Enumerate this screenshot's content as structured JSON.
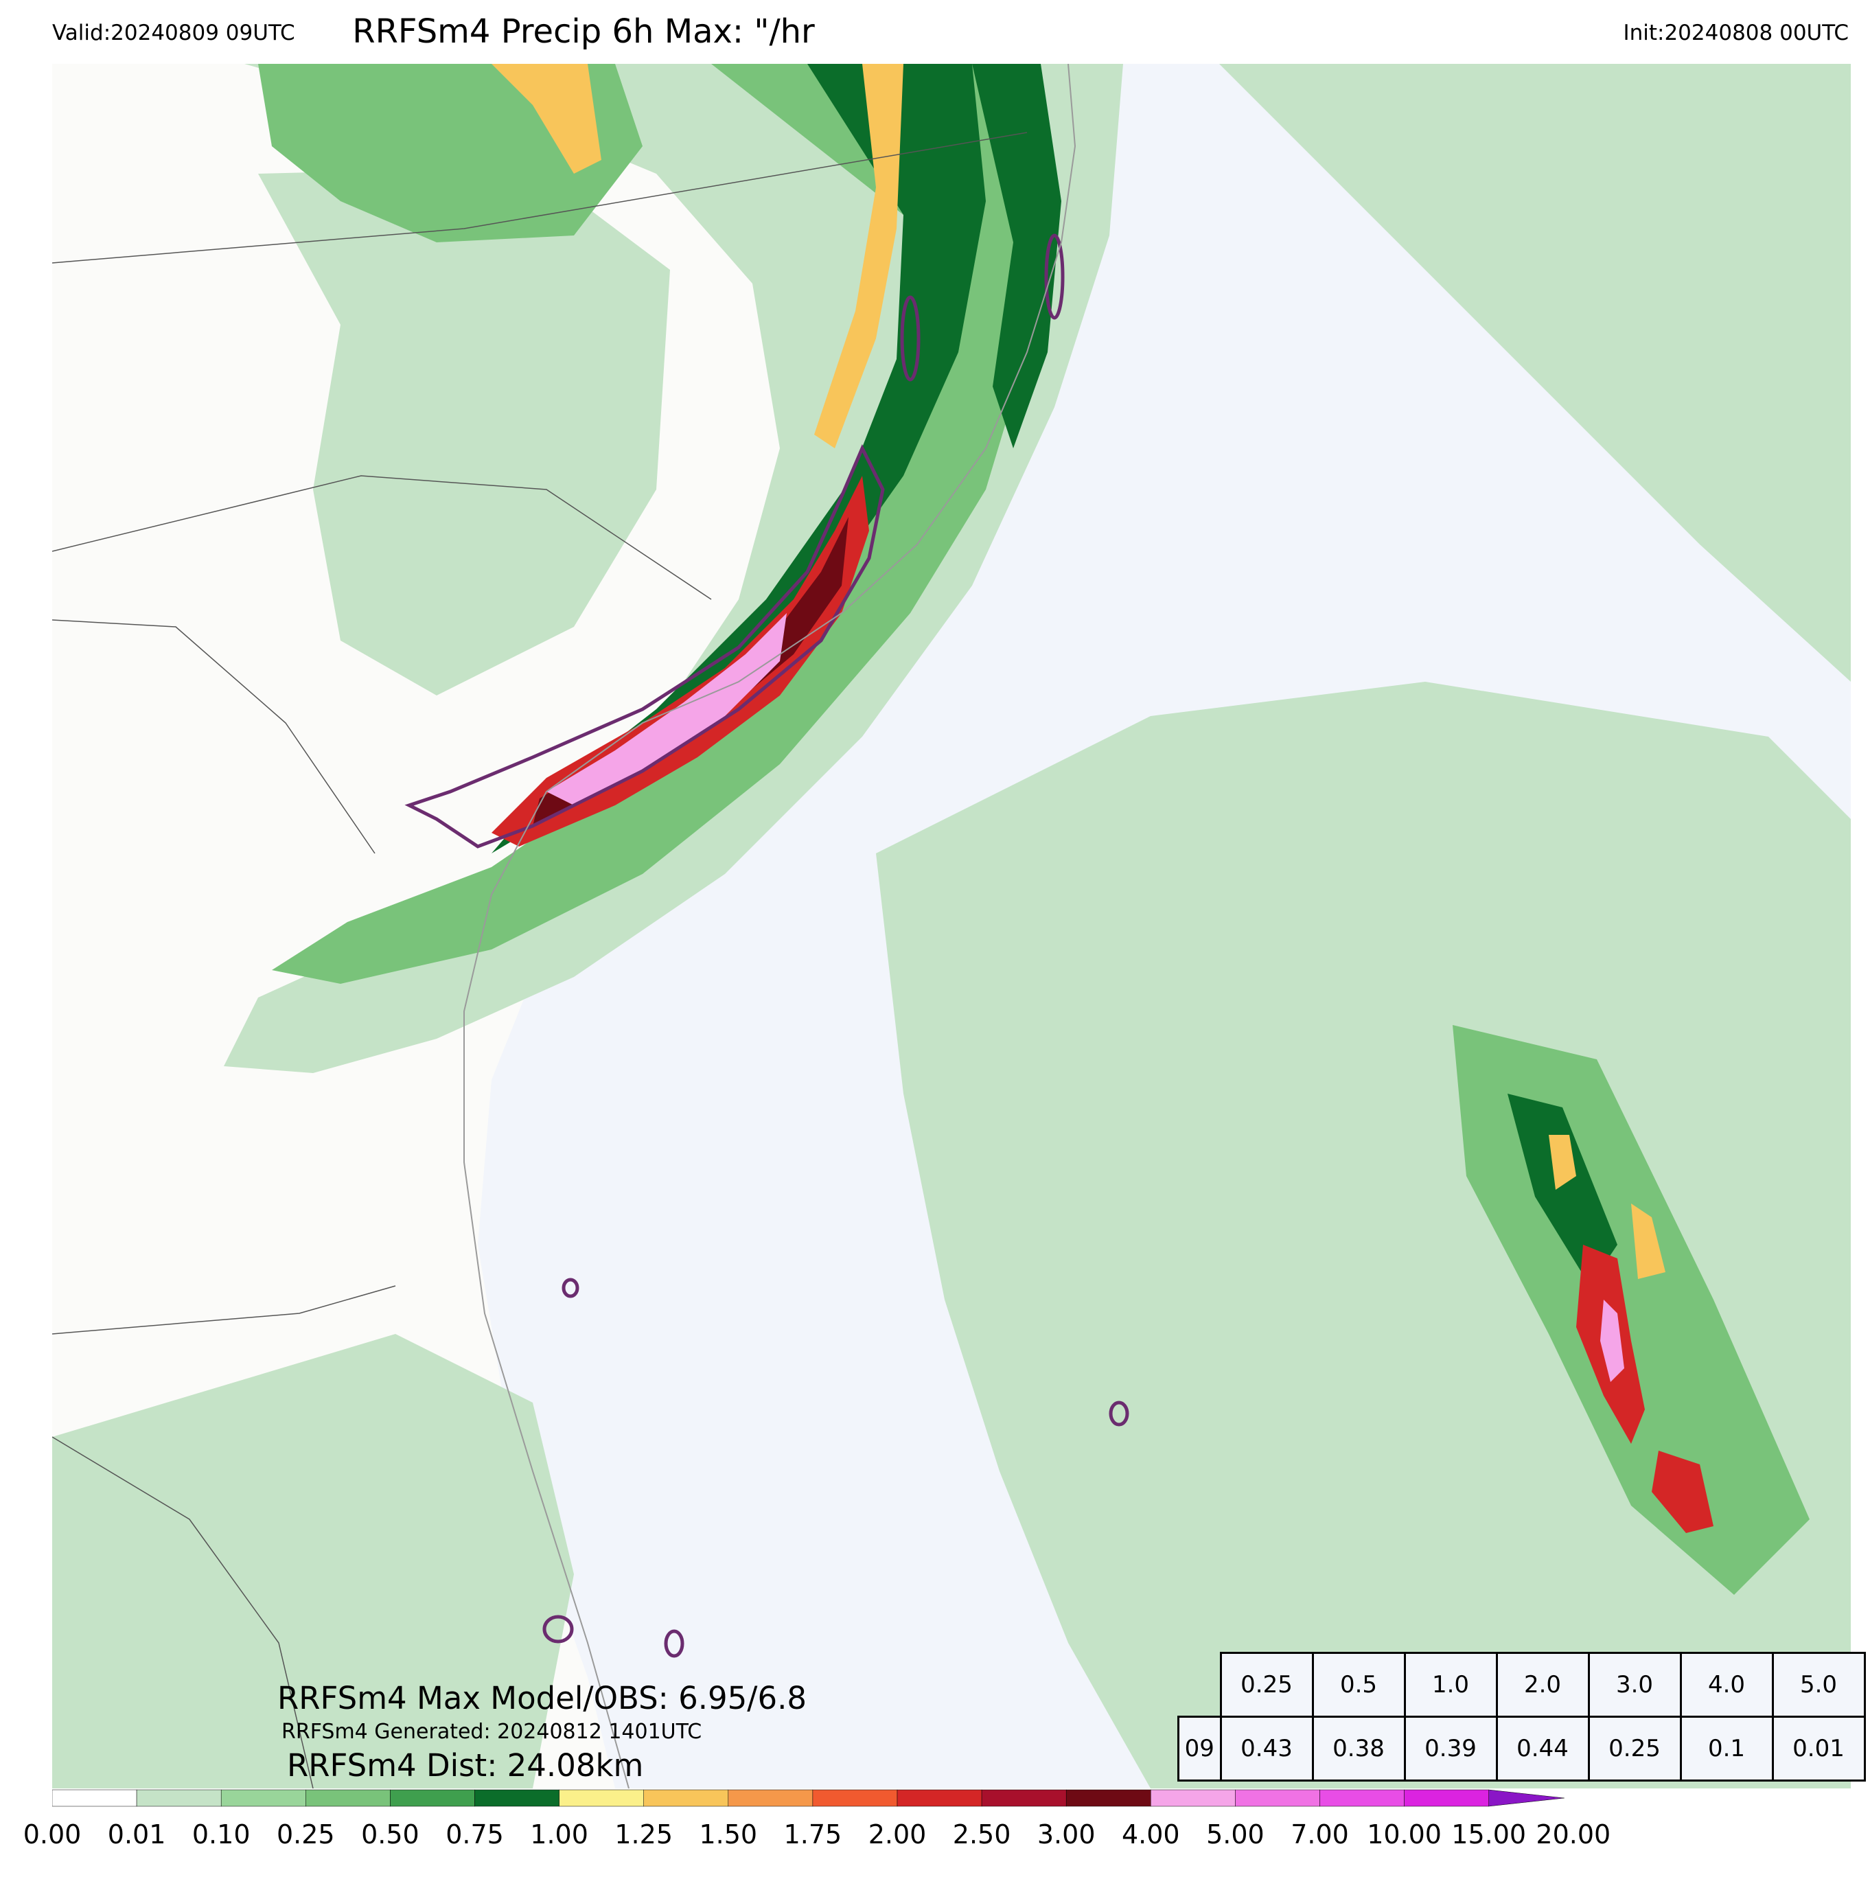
{
  "header": {
    "valid": "Valid:20240809 09UTC",
    "title": "RRFSm4 Precip 6h Max: \"/hr",
    "init": "Init:20240808 00UTC"
  },
  "map": {
    "ocean_color": "#f2f5fb",
    "land_color": "#fbfbf9",
    "fill_colors": [
      "#c5e3c7",
      "#99d59a",
      "#79c37a",
      "#3f9f4e",
      "#0b6d2a",
      "#fbf08a",
      "#f8c55a",
      "#f5984a",
      "#f15a2f",
      "#d42626",
      "#a8102c",
      "#6e0a14",
      "#f5a5e8",
      "#f072e4",
      "#e84de6",
      "#db23e0",
      "#8a16c6"
    ],
    "contour_color": "#6b2c6f"
  },
  "annotations": {
    "max_model_obs": "RRFSm4 Max Model/OBS: 6.95/6.8",
    "generated": "RRFSm4 Generated: 20240812 1401UTC",
    "dist": "RRFSm4 Dist: 24.08km"
  },
  "stats_table": {
    "thresholds": [
      "0.25",
      "0.5",
      "1.0",
      "2.0",
      "3.0",
      "4.0",
      "5.0"
    ],
    "row_label": "09",
    "values": [
      "0.43",
      "0.38",
      "0.39",
      "0.44",
      "0.25",
      "0.1",
      "0.01"
    ]
  },
  "colorbar": {
    "ticks": [
      "0.00",
      "0.01",
      "0.10",
      "0.25",
      "0.50",
      "0.75",
      "1.00",
      "1.25",
      "1.50",
      "1.75",
      "2.00",
      "2.50",
      "3.00",
      "4.00",
      "5.00",
      "7.00",
      "10.00",
      "15.00",
      "20.00"
    ],
    "colors": [
      "#ffffff",
      "#c5e3c7",
      "#99d59a",
      "#79c37a",
      "#3f9f4e",
      "#0b6d2a",
      "#fbf08a",
      "#f8c55a",
      "#f5984a",
      "#f15a2f",
      "#d42626",
      "#a8102c",
      "#6e0a14",
      "#f5a5e8",
      "#f072e4",
      "#e84de6",
      "#db23e0",
      "#8a16c6"
    ]
  }
}
